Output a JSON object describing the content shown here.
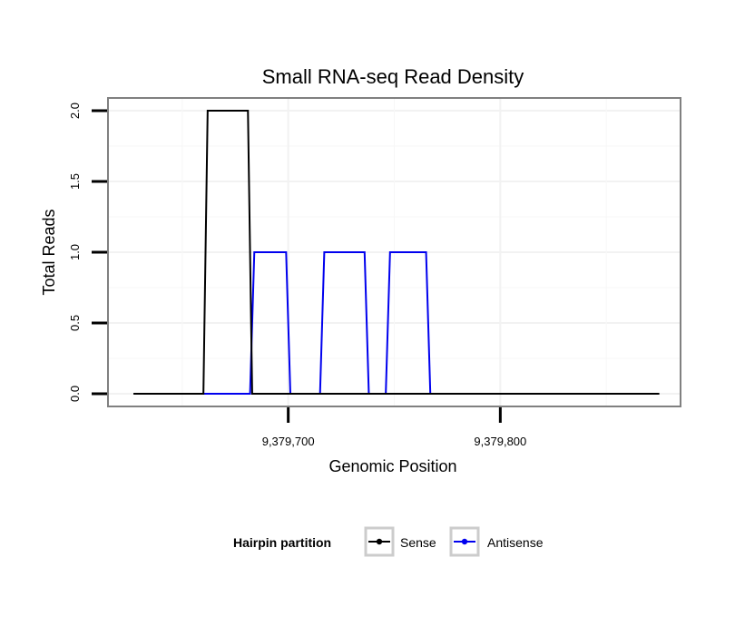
{
  "chart_data": {
    "type": "line",
    "title": "Small RNA-seq Read Density",
    "xlabel": "Genomic Position",
    "ylabel": "Total Reads",
    "xlim": [
      9379615,
      9379885
    ],
    "ylim": [
      -0.09,
      2.09
    ],
    "x_ticks": [
      9379700,
      9379800
    ],
    "x_tick_labels": [
      "9,379,700",
      "9,379,800"
    ],
    "y_ticks": [
      0,
      0.5,
      1,
      1.5,
      2
    ],
    "y_tick_labels": [
      "0.0",
      "0.5",
      "1.0",
      "1.5",
      "2.0"
    ],
    "grid": true,
    "legend": {
      "title": "Hairpin partition",
      "position": "bottom"
    },
    "series": [
      {
        "name": "Sense",
        "color": "#000000",
        "x": [
          9379627,
          9379660,
          9379662,
          9379681,
          9379683,
          9379875
        ],
        "y": [
          0,
          0,
          2,
          2,
          0,
          0
        ]
      },
      {
        "name": "Antisense",
        "color": "#0000ee",
        "x": [
          9379660,
          9379682,
          9379684,
          9379699,
          9379701,
          9379715,
          9379717,
          9379736,
          9379738,
          9379746,
          9379748,
          9379765,
          9379767
        ],
        "y": [
          0,
          0,
          1,
          1,
          0,
          0,
          1,
          1,
          0,
          0,
          1,
          1,
          0
        ]
      }
    ]
  }
}
